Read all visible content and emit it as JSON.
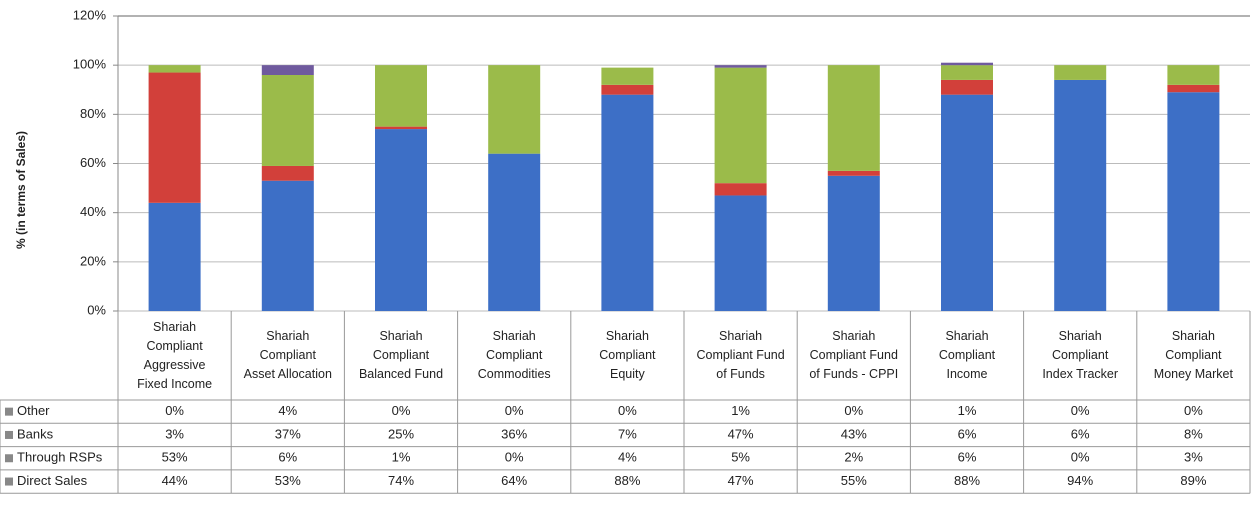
{
  "chart_data": {
    "type": "stacked_bar",
    "y_label": "% (in terms of Sales)",
    "categories": [
      "Shariah\nCompliant\nAggressive\nFixed Income",
      "Shariah\nCompliant\nAsset Allocation",
      "Shariah\nCompliant\nBalanced Fund",
      "Shariah\nCompliant\nCommodities",
      "Shariah\nCompliant\nEquity",
      "Shariah\nCompliant Fund\nof Funds",
      "Shariah\nCompliant Fund\nof Funds - CPPI",
      "Shariah\nCompliant\nIncome",
      "Shariah\nCompliant\nIndex Tracker",
      "Shariah\nCompliant\nMoney Market"
    ],
    "series": [
      {
        "name": "Other",
        "color": "#6f5a9e",
        "values": [
          0,
          4,
          0,
          0,
          0,
          1,
          0,
          1,
          0,
          0
        ],
        "value_labels": [
          "0%",
          "4%",
          "0%",
          "0%",
          "0%",
          "1%",
          "0%",
          "1%",
          "0%",
          "0%"
        ]
      },
      {
        "name": "Banks",
        "color": "#9bbb4a",
        "values": [
          3,
          37,
          25,
          36,
          7,
          47,
          43,
          6,
          6,
          8
        ],
        "value_labels": [
          "3%",
          "37%",
          "25%",
          "36%",
          "7%",
          "47%",
          "43%",
          "6%",
          "6%",
          "8%"
        ]
      },
      {
        "name": "Through RSPs",
        "color": "#d2403a",
        "values": [
          53,
          6,
          1,
          0,
          4,
          5,
          2,
          6,
          0,
          3
        ],
        "value_labels": [
          "53%",
          "6%",
          "1%",
          "0%",
          "4%",
          "5%",
          "2%",
          "6%",
          "0%",
          "3%"
        ]
      },
      {
        "name": "Direct Sales",
        "color": "#3d6fc6",
        "values": [
          44,
          53,
          74,
          64,
          88,
          47,
          55,
          88,
          94,
          89
        ],
        "value_labels": [
          "44%",
          "53%",
          "74%",
          "64%",
          "88%",
          "47%",
          "55%",
          "88%",
          "94%",
          "89%"
        ]
      }
    ],
    "ylim": [
      0,
      120
    ],
    "yticks": [
      {
        "value": 0,
        "label": "0%"
      },
      {
        "value": 20,
        "label": "20%"
      },
      {
        "value": 40,
        "label": "40%"
      },
      {
        "value": 60,
        "label": "60%"
      },
      {
        "value": 80,
        "label": "80%"
      },
      {
        "value": 100,
        "label": "100%"
      },
      {
        "value": 120,
        "label": "120%"
      }
    ],
    "grid": true
  }
}
